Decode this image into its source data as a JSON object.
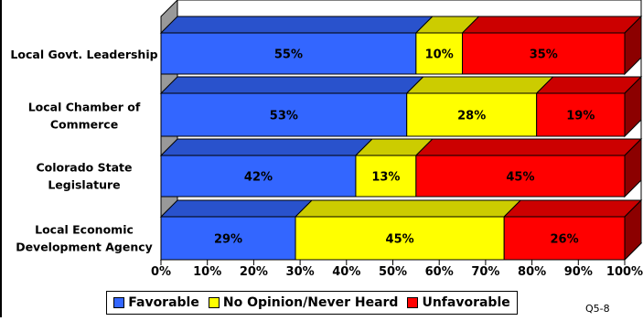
{
  "chart_data": {
    "type": "bar",
    "orientation": "horizontal",
    "stacked": true,
    "style": "3d",
    "categories": [
      "Local  Govt. Leadership",
      "Local Chamber of Commerce",
      "Colorado State Legislature",
      "Local Economic Development Agency"
    ],
    "category_lines": [
      [
        "Local  Govt. Leadership"
      ],
      [
        "Local Chamber of",
        "Commerce"
      ],
      [
        "Colorado State",
        "Legislature"
      ],
      [
        "Local Economic",
        "Development Agency"
      ]
    ],
    "series": [
      {
        "name": "Favorable",
        "color": "#3366ff",
        "values": [
          55,
          53,
          42,
          29
        ],
        "labels": [
          "55%",
          "53%",
          "42%",
          "29%"
        ]
      },
      {
        "name": "No Opinion/Never Heard",
        "color": "#ffff00",
        "values": [
          10,
          28,
          13,
          45
        ],
        "labels": [
          "10%",
          "28%",
          "13%",
          "45%"
        ]
      },
      {
        "name": "Unfavorable",
        "color": "#ff0000",
        "values": [
          35,
          19,
          45,
          26
        ],
        "labels": [
          "35%",
          "19%",
          "45%",
          "26%"
        ]
      }
    ],
    "xlim": [
      0,
      100
    ],
    "x_ticks": [
      "0%",
      "10%",
      "20%",
      "30%",
      "40%",
      "50%",
      "60%",
      "70%",
      "80%",
      "90%",
      "100%"
    ],
    "legend_position": "bottom",
    "grid": false
  },
  "footer_code": "Q5-8"
}
